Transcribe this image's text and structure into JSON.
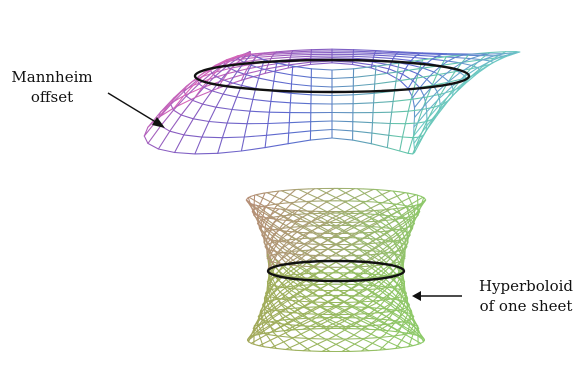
{
  "labels": {
    "mannheim": {
      "line1": "Mannheim",
      "line2": "offset"
    },
    "hyperboloid": {
      "line1": "Hyperboloid",
      "line2": "of one sheet"
    }
  },
  "colors": {
    "pink": "#d966b8",
    "purple": "#8a5cc0",
    "blue": "#5a6ad0",
    "cyan": "#6fc8c8",
    "teal": "#64c6a8",
    "olive": "#a4a85a",
    "green": "#8ccc6a",
    "tan": "#b88c78",
    "circle": "#111111",
    "arrow": "#111111"
  }
}
